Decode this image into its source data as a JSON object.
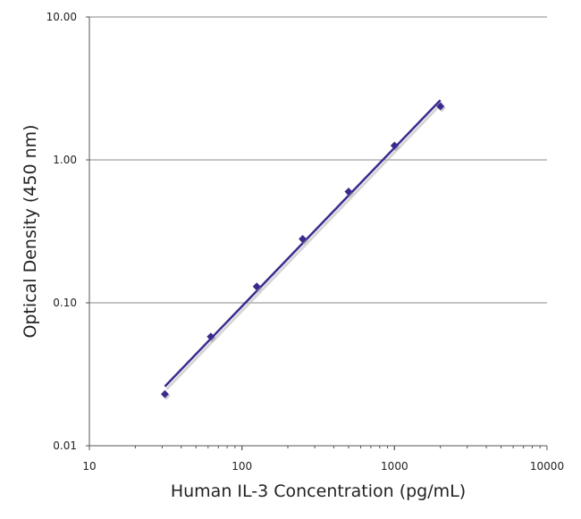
{
  "chart_data": {
    "type": "scatter",
    "title": "",
    "xlabel": "Human IL-3 Concentration (pg/mL)",
    "ylabel": "Optical Density (450 nm)",
    "xscale": "log",
    "yscale": "log",
    "xlim": [
      10,
      10000
    ],
    "ylim": [
      0.01,
      10
    ],
    "xticks": [
      "10",
      "100",
      "1000",
      "10000"
    ],
    "yticks": [
      "0.01",
      "0.10",
      "1.00",
      "10.00"
    ],
    "grid": "horizontal major",
    "legend": "none",
    "color": "#3b2a8e",
    "points": {
      "x": [
        31.25,
        62.5,
        125,
        250,
        500,
        1000,
        2000
      ],
      "y": [
        0.023,
        0.058,
        0.13,
        0.28,
        0.6,
        1.26,
        2.37
      ]
    },
    "fit_line": {
      "x": [
        31.25,
        2000
      ],
      "y": [
        0.026,
        2.62
      ]
    }
  }
}
